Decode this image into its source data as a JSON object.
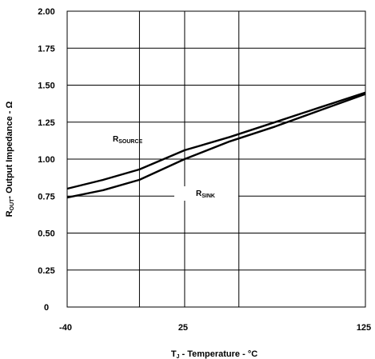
{
  "chart_data": {
    "type": "line",
    "xlabel": {
      "main": "T",
      "sub": "J",
      "rest": " - Temperature - °C"
    },
    "ylabel": {
      "main": "R",
      "sub": "OUT",
      "rest": "- Output Impedance - Ω"
    },
    "xlim": [
      -40,
      125
    ],
    "ylim": [
      0,
      2.0
    ],
    "x_ticks": [
      -40,
      25,
      125
    ],
    "x_tick_labels": [
      "-40",
      "25",
      "125"
    ],
    "x_gridlines": [
      -40,
      0,
      25,
      55,
      125
    ],
    "y_ticks": [
      0,
      0.25,
      0.5,
      0.75,
      1.0,
      1.25,
      1.5,
      1.75,
      2.0
    ],
    "y_tick_labels": [
      "0",
      "0.25",
      "0.50",
      "0.75",
      "1.00",
      "1.25",
      "1.50",
      "1.75",
      "2.00"
    ],
    "grid": true,
    "series": [
      {
        "name": "R_SOURCE",
        "label": {
          "main": "R",
          "sub": "SOURCE"
        },
        "x": [
          -40,
          -20,
          0,
          25,
          50,
          75,
          100,
          125
        ],
        "y": [
          0.8,
          0.86,
          0.93,
          1.06,
          1.15,
          1.25,
          1.35,
          1.45
        ]
      },
      {
        "name": "R_SINK",
        "label": {
          "main": "R",
          "sub": "SINK"
        },
        "x": [
          -40,
          -20,
          0,
          25,
          50,
          75,
          100,
          125
        ],
        "y": [
          0.74,
          0.79,
          0.86,
          1.0,
          1.12,
          1.22,
          1.33,
          1.44
        ]
      }
    ],
    "line_color": "#000000"
  }
}
